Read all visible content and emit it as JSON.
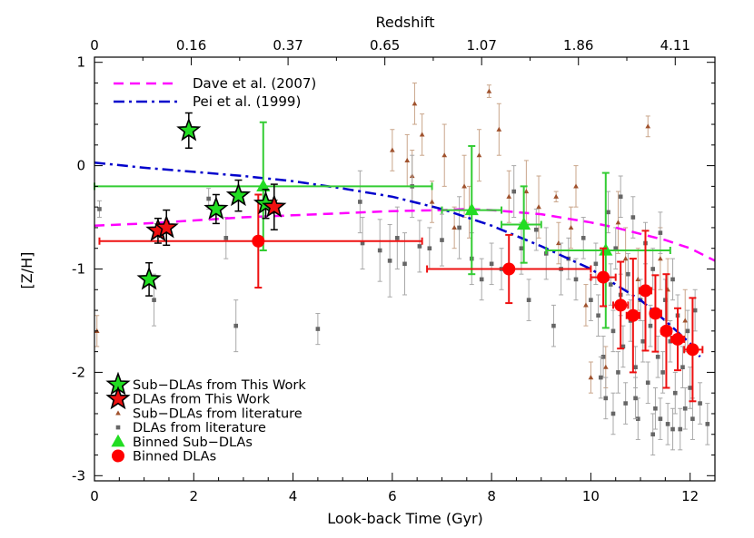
{
  "chart_data": {
    "type": "scatter",
    "xlabel": "Look-back Time (Gyr)",
    "ylabel": "[Z/H]",
    "top_axis_label": "Redshift",
    "xlim": [
      0,
      12.5
    ],
    "ylim": [
      -3.05,
      1.05
    ],
    "x_ticks": [
      "0",
      "2",
      "4",
      "6",
      "8",
      "10",
      "12"
    ],
    "y_ticks": [
      "1",
      "0",
      "-1",
      "-2",
      "-3"
    ],
    "top_ticks": [
      {
        "x": 0.0,
        "label": "0"
      },
      {
        "x": 1.95,
        "label": "0.16"
      },
      {
        "x": 3.9,
        "label": "0.37"
      },
      {
        "x": 5.85,
        "label": "0.65"
      },
      {
        "x": 7.8,
        "label": "1.07"
      },
      {
        "x": 9.75,
        "label": "1.86"
      },
      {
        "x": 11.7,
        "label": "4.11"
      }
    ],
    "grid": false,
    "legend_top": [
      {
        "label": "Dave et al. (2007)",
        "color": "#ff00ff",
        "style": "dashed"
      },
      {
        "label": "Pei et al. (1999)",
        "color": "#0000cc",
        "style": "dashdot"
      }
    ],
    "legend_bottom": [
      {
        "label": "Sub−DLAs from This Work",
        "marker": "star",
        "color": "#22dd22"
      },
      {
        "label": "DLAs from This Work",
        "marker": "star",
        "color": "#ee1111"
      },
      {
        "label": "Sub−DLAs from literature",
        "marker": "small-triangle",
        "color": "#a0522d"
      },
      {
        "label": "DLAs from literature",
        "marker": "small-square",
        "color": "#666666"
      },
      {
        "label": "Binned Sub−DLAs",
        "marker": "triangle",
        "color": "#22dd22"
      },
      {
        "label": "Binned DLAs",
        "marker": "circle",
        "color": "#ff0000"
      }
    ],
    "models": {
      "dave": {
        "color": "#ff00ff",
        "x": [
          0,
          1,
          2,
          3,
          4,
          5,
          6,
          7,
          7.5,
          8,
          9,
          10,
          10.5,
          11,
          11.5,
          12,
          12.5
        ],
        "y": [
          -0.58,
          -0.56,
          -0.53,
          -0.5,
          -0.48,
          -0.46,
          -0.44,
          -0.43,
          -0.42,
          -0.43,
          -0.47,
          -0.55,
          -0.6,
          -0.66,
          -0.72,
          -0.8,
          -0.92
        ]
      },
      "pei": {
        "color": "#0000cc",
        "x": [
          0,
          1,
          2,
          3,
          4,
          5,
          6,
          7,
          8,
          9,
          10,
          10.5,
          11,
          11.5,
          12,
          12.2
        ],
        "y": [
          0.03,
          -0.02,
          -0.06,
          -0.1,
          -0.15,
          -0.22,
          -0.3,
          -0.42,
          -0.58,
          -0.78,
          -1.0,
          -1.15,
          -1.3,
          -1.5,
          -1.72,
          -1.85
        ]
      }
    },
    "series": [
      {
        "name": "Sub−DLAs from This Work",
        "marker": "star",
        "color": "#22dd22",
        "points": [
          {
            "x": 1.1,
            "y": -1.1,
            "err": 0.16
          },
          {
            "x": 1.9,
            "y": 0.34,
            "err": 0.17
          },
          {
            "x": 2.45,
            "y": -0.42,
            "err": 0.14
          },
          {
            "x": 2.9,
            "y": -0.29,
            "err": 0.15
          },
          {
            "x": 3.45,
            "y": -0.37,
            "err": 0.14
          }
        ]
      },
      {
        "name": "DLAs from This Work",
        "marker": "star",
        "color": "#ee1111",
        "points": [
          {
            "x": 1.28,
            "y": -0.63,
            "err": 0.12
          },
          {
            "x": 1.45,
            "y": -0.6,
            "err": 0.17
          },
          {
            "x": 3.62,
            "y": -0.4,
            "err": 0.22
          }
        ]
      },
      {
        "name": "Binned Sub−DLAs",
        "marker": "triangle",
        "color": "#22dd22",
        "points": [
          {
            "x": 3.4,
            "y": -0.2,
            "err": 0.62,
            "x_lo": 0.0,
            "x_hi": 6.8
          },
          {
            "x": 7.6,
            "y": -0.43,
            "err": 0.62,
            "x_lo": 7.0,
            "x_hi": 8.2
          },
          {
            "x": 8.65,
            "y": -0.57,
            "err": 0.37,
            "x_lo": 8.2,
            "x_hi": 9.0
          },
          {
            "x": 10.3,
            "y": -0.82,
            "err": 0.75,
            "x_lo": 9.1,
            "x_hi": 11.6
          }
        ]
      },
      {
        "name": "Binned DLAs",
        "marker": "circle",
        "color": "#ff0000",
        "points": [
          {
            "x": 3.3,
            "y": -0.73,
            "err": 0.45,
            "x_lo": 0.1,
            "x_hi": 6.6
          },
          {
            "x": 8.35,
            "y": -1.0,
            "err": 0.33,
            "x_lo": 6.7,
            "x_hi": 10.0
          },
          {
            "x": 10.25,
            "y": -1.08,
            "err": 0.28,
            "x_lo": 10.0,
            "x_hi": 10.5
          },
          {
            "x": 10.6,
            "y": -1.35,
            "err": 0.42,
            "x_lo": 10.45,
            "x_hi": 10.75
          },
          {
            "x": 10.85,
            "y": -1.45,
            "err": 0.55,
            "x_lo": 10.72,
            "x_hi": 10.98
          },
          {
            "x": 11.1,
            "y": -1.21,
            "err": 0.58,
            "x_lo": 10.98,
            "x_hi": 11.22
          },
          {
            "x": 11.3,
            "y": -1.43,
            "err": 0.37,
            "x_lo": 11.2,
            "x_hi": 11.42
          },
          {
            "x": 11.52,
            "y": -1.6,
            "err": 0.55,
            "x_lo": 11.42,
            "x_hi": 11.62
          },
          {
            "x": 11.75,
            "y": -1.68,
            "err": 0.3,
            "x_lo": 11.62,
            "x_hi": 11.88
          },
          {
            "x": 12.05,
            "y": -1.78,
            "err": 0.5,
            "x_lo": 11.88,
            "x_hi": 12.25
          }
        ]
      },
      {
        "name": "Sub−DLAs from literature",
        "marker": "small-triangle",
        "color": "#a0522d",
        "points": [
          {
            "x": 0.05,
            "y": -1.6,
            "err": 0.15
          },
          {
            "x": 6.0,
            "y": 0.15,
            "err": 0.2
          },
          {
            "x": 6.3,
            "y": 0.05,
            "err": 0.25
          },
          {
            "x": 6.45,
            "y": 0.6,
            "err": 0.2
          },
          {
            "x": 6.4,
            "y": -0.1,
            "err": 0.25
          },
          {
            "x": 6.6,
            "y": 0.3,
            "err": 0.2
          },
          {
            "x": 6.8,
            "y": -0.35,
            "err": 0.2
          },
          {
            "x": 7.05,
            "y": 0.1,
            "err": 0.3
          },
          {
            "x": 7.25,
            "y": -0.6,
            "err": 0.2
          },
          {
            "x": 7.45,
            "y": -0.2,
            "err": 0.3
          },
          {
            "x": 7.55,
            "y": -0.45,
            "err": 0.25
          },
          {
            "x": 7.75,
            "y": 0.1,
            "err": 0.25
          },
          {
            "x": 7.95,
            "y": 0.72,
            "err": 0.06
          },
          {
            "x": 8.15,
            "y": 0.35,
            "err": 0.25
          },
          {
            "x": 8.35,
            "y": -0.3,
            "err": 0.25
          },
          {
            "x": 8.7,
            "y": -0.25,
            "err": 0.3
          },
          {
            "x": 8.95,
            "y": -0.4,
            "err": 0.3
          },
          {
            "x": 9.3,
            "y": -0.3,
            "err": 0.05
          },
          {
            "x": 9.35,
            "y": -0.75,
            "err": 0.2
          },
          {
            "x": 9.6,
            "y": -0.6,
            "err": 0.2
          },
          {
            "x": 9.7,
            "y": -0.2,
            "err": 0.2
          },
          {
            "x": 10.55,
            "y": -0.55,
            "err": 0.3
          },
          {
            "x": 10.7,
            "y": -0.9,
            "err": 0.3
          },
          {
            "x": 10.95,
            "y": -1.1,
            "err": 0.3
          },
          {
            "x": 11.15,
            "y": 0.38,
            "err": 0.1
          },
          {
            "x": 11.4,
            "y": -0.9,
            "err": 0.3
          },
          {
            "x": 11.55,
            "y": -1.2,
            "err": 0.3
          },
          {
            "x": 9.9,
            "y": -1.35,
            "err": 0.2
          },
          {
            "x": 10.3,
            "y": -1.95,
            "err": 0.2
          },
          {
            "x": 10.0,
            "y": -2.05,
            "err": 0.15
          },
          {
            "x": 11.9,
            "y": -1.5,
            "err": 0.3
          }
        ]
      },
      {
        "name": "DLAs from literature",
        "marker": "small-square",
        "color": "#666666",
        "points": [
          {
            "x": 0.1,
            "y": -0.42,
            "err": 0.08
          },
          {
            "x": 1.2,
            "y": -1.3,
            "err": 0.25
          },
          {
            "x": 2.3,
            "y": -0.32,
            "err": 0.1
          },
          {
            "x": 2.65,
            "y": -0.7,
            "err": 0.2
          },
          {
            "x": 2.85,
            "y": -1.55,
            "err": 0.25
          },
          {
            "x": 4.5,
            "y": -1.58,
            "err": 0.15
          },
          {
            "x": 5.35,
            "y": -0.35,
            "err": 0.3
          },
          {
            "x": 5.4,
            "y": -0.75,
            "err": 0.25
          },
          {
            "x": 5.75,
            "y": -0.82,
            "err": 0.3
          },
          {
            "x": 5.95,
            "y": -0.92,
            "err": 0.35
          },
          {
            "x": 6.1,
            "y": -0.7,
            "err": 0.3
          },
          {
            "x": 6.25,
            "y": -0.95,
            "err": 0.3
          },
          {
            "x": 6.4,
            "y": -0.2,
            "err": 0.3
          },
          {
            "x": 6.55,
            "y": -0.78,
            "err": 0.25
          },
          {
            "x": 6.75,
            "y": -0.8,
            "err": 0.2
          },
          {
            "x": 7.0,
            "y": -0.72,
            "err": 0.25
          },
          {
            "x": 7.35,
            "y": -0.6,
            "err": 0.3
          },
          {
            "x": 7.6,
            "y": -0.9,
            "err": 0.25
          },
          {
            "x": 7.8,
            "y": -1.1,
            "err": 0.2
          },
          {
            "x": 8.0,
            "y": -0.95,
            "err": 0.2
          },
          {
            "x": 8.2,
            "y": -1.0,
            "err": 0.2
          },
          {
            "x": 8.45,
            "y": -0.25,
            "err": 0.25
          },
          {
            "x": 8.6,
            "y": -0.8,
            "err": 0.25
          },
          {
            "x": 8.75,
            "y": -1.3,
            "err": 0.2
          },
          {
            "x": 8.9,
            "y": -0.62,
            "err": 0.2
          },
          {
            "x": 9.1,
            "y": -0.85,
            "err": 0.25
          },
          {
            "x": 9.25,
            "y": -1.55,
            "err": 0.2
          },
          {
            "x": 9.4,
            "y": -1.0,
            "err": 0.25
          },
          {
            "x": 9.55,
            "y": -0.9,
            "err": 0.2
          },
          {
            "x": 9.7,
            "y": -1.1,
            "err": 0.2
          },
          {
            "x": 9.85,
            "y": -0.7,
            "err": 0.2
          },
          {
            "x": 10.0,
            "y": -1.3,
            "err": 0.2
          },
          {
            "x": 10.1,
            "y": -0.95,
            "err": 0.2
          },
          {
            "x": 10.15,
            "y": -1.45,
            "err": 0.2
          },
          {
            "x": 10.25,
            "y": -1.85,
            "err": 0.2
          },
          {
            "x": 10.3,
            "y": -2.25,
            "err": 0.2
          },
          {
            "x": 10.4,
            "y": -1.15,
            "err": 0.2
          },
          {
            "x": 10.45,
            "y": -1.6,
            "err": 0.2
          },
          {
            "x": 10.5,
            "y": -0.8,
            "err": 0.2
          },
          {
            "x": 10.55,
            "y": -2.0,
            "err": 0.2
          },
          {
            "x": 10.6,
            "y": -1.25,
            "err": 0.2
          },
          {
            "x": 10.65,
            "y": -1.75,
            "err": 0.2
          },
          {
            "x": 10.7,
            "y": -2.3,
            "err": 0.2
          },
          {
            "x": 10.75,
            "y": -1.05,
            "err": 0.2
          },
          {
            "x": 10.8,
            "y": -1.5,
            "err": 0.2
          },
          {
            "x": 10.85,
            "y": -0.5,
            "err": 0.2
          },
          {
            "x": 10.9,
            "y": -1.95,
            "err": 0.2
          },
          {
            "x": 10.95,
            "y": -2.45,
            "err": 0.2
          },
          {
            "x": 11.0,
            "y": -1.3,
            "err": 0.2
          },
          {
            "x": 11.05,
            "y": -1.7,
            "err": 0.2
          },
          {
            "x": 11.1,
            "y": -0.75,
            "err": 0.2
          },
          {
            "x": 11.15,
            "y": -2.1,
            "err": 0.2
          },
          {
            "x": 11.2,
            "y": -1.55,
            "err": 0.2
          },
          {
            "x": 11.25,
            "y": -1.0,
            "err": 0.2
          },
          {
            "x": 11.3,
            "y": -2.35,
            "err": 0.2
          },
          {
            "x": 11.35,
            "y": -1.85,
            "err": 0.2
          },
          {
            "x": 11.4,
            "y": -0.65,
            "err": 0.2
          },
          {
            "x": 11.45,
            "y": -2.0,
            "err": 0.2
          },
          {
            "x": 11.5,
            "y": -1.3,
            "err": 0.2
          },
          {
            "x": 11.55,
            "y": -2.5,
            "err": 0.2
          },
          {
            "x": 11.6,
            "y": -1.7,
            "err": 0.2
          },
          {
            "x": 11.65,
            "y": -1.1,
            "err": 0.2
          },
          {
            "x": 11.7,
            "y": -2.2,
            "err": 0.2
          },
          {
            "x": 11.75,
            "y": -1.45,
            "err": 0.2
          },
          {
            "x": 11.8,
            "y": -2.55,
            "err": 0.2
          },
          {
            "x": 11.85,
            "y": -1.95,
            "err": 0.2
          },
          {
            "x": 11.9,
            "y": -2.35,
            "err": 0.2
          },
          {
            "x": 11.95,
            "y": -1.6,
            "err": 0.2
          },
          {
            "x": 12.0,
            "y": -2.15,
            "err": 0.2
          },
          {
            "x": 12.05,
            "y": -2.45,
            "err": 0.2
          },
          {
            "x": 12.1,
            "y": -1.4,
            "err": 0.2
          },
          {
            "x": 12.2,
            "y": -2.3,
            "err": 0.2
          },
          {
            "x": 12.35,
            "y": -2.5,
            "err": 0.2
          },
          {
            "x": 10.35,
            "y": -0.45,
            "err": 0.2
          },
          {
            "x": 10.6,
            "y": -0.3,
            "err": 0.2
          },
          {
            "x": 10.2,
            "y": -2.05,
            "err": 0.2
          },
          {
            "x": 10.9,
            "y": -2.25,
            "err": 0.2
          },
          {
            "x": 11.4,
            "y": -2.45,
            "err": 0.2
          },
          {
            "x": 11.65,
            "y": -2.55,
            "err": 0.2
          },
          {
            "x": 10.45,
            "y": -2.4,
            "err": 0.2
          },
          {
            "x": 11.25,
            "y": -2.6,
            "err": 0.2
          }
        ]
      }
    ]
  }
}
